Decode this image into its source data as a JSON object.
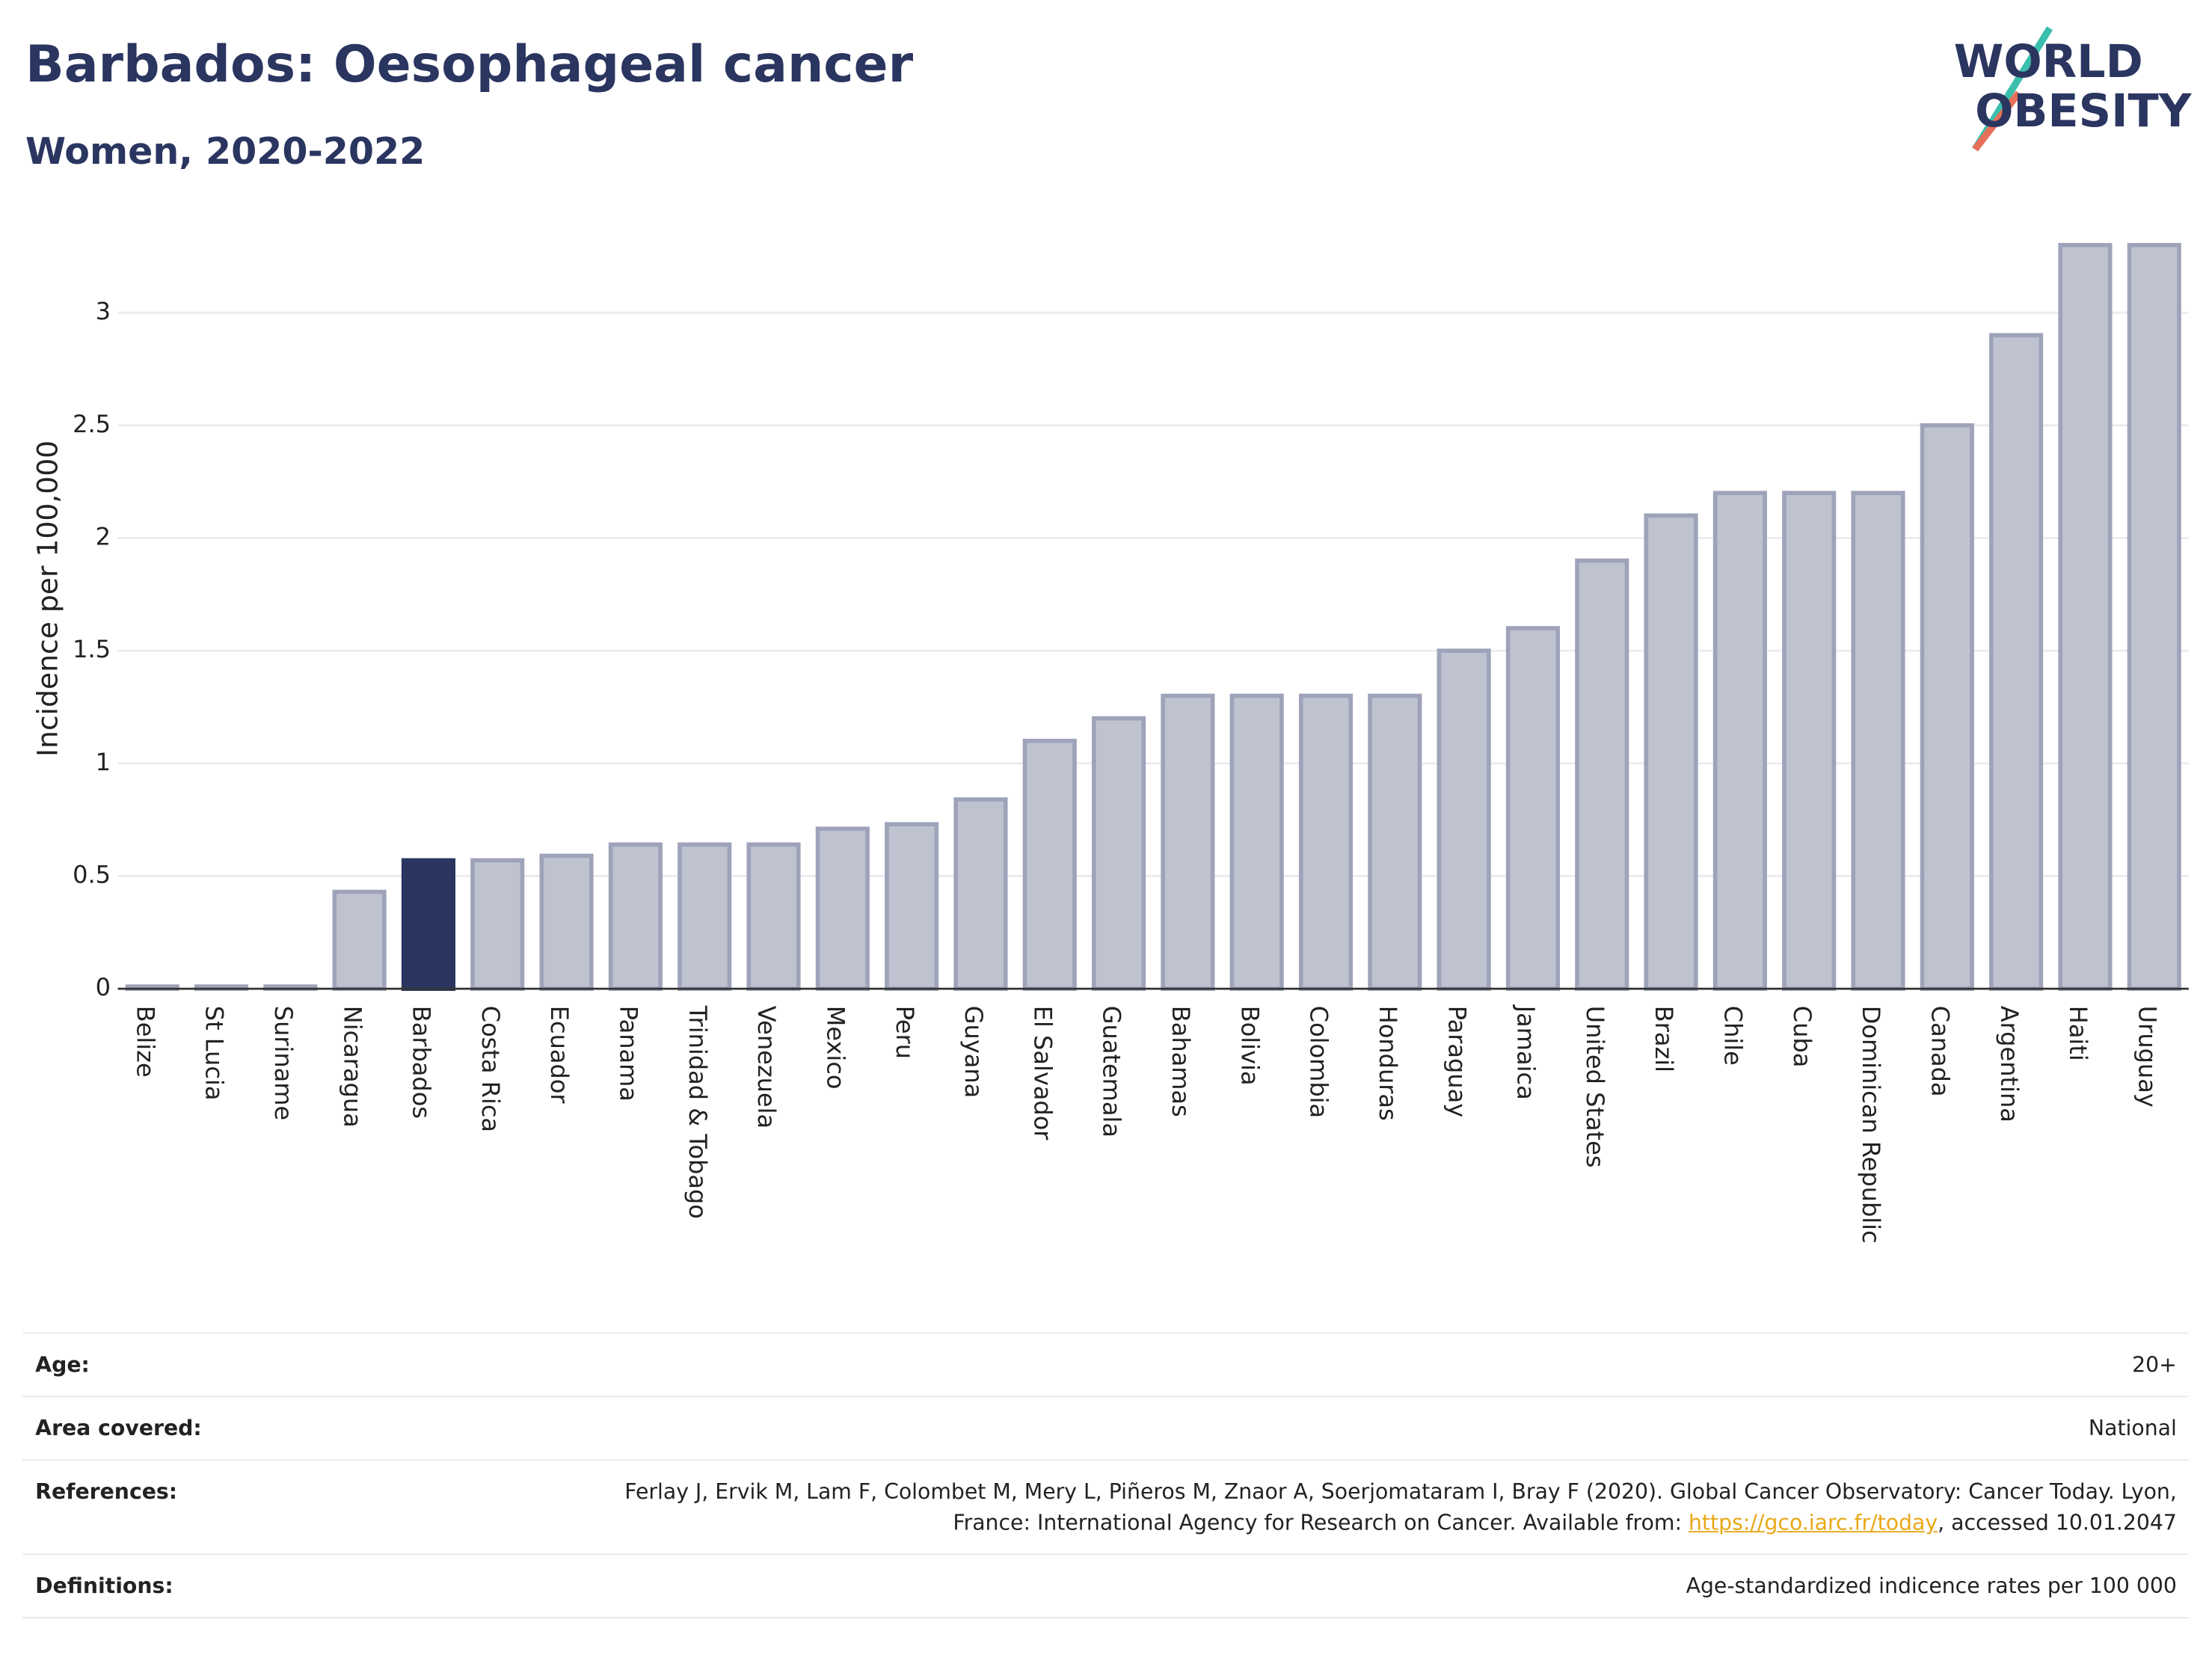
{
  "header": {
    "logo_line1": "WORLD",
    "logo_line2": "OBESITY"
  },
  "chart_data": {
    "type": "bar",
    "title": "Barbados: Oesophageal cancer",
    "subtitle": "Women, 2020-2022",
    "y_label": "Incidence per 100,000",
    "categories": [
      "Belize",
      "St Lucia",
      "Suriname",
      "Nicaragua",
      "Barbados",
      "Costa Rica",
      "Ecuador",
      "Panama",
      "Trinidad & Tobago",
      "Venezuela",
      "Mexico",
      "Peru",
      "Guyana",
      "El Salvador",
      "Guatemala",
      "Bahamas",
      "Bolivia",
      "Colombia",
      "Honduras",
      "Paraguay",
      "Jamaica",
      "United States",
      "Brazil",
      "Chile",
      "Cuba",
      "Dominican Republic",
      "Canada",
      "Argentina",
      "Haiti",
      "Uruguay"
    ],
    "values": [
      0.01,
      0.01,
      0.01,
      0.43,
      0.57,
      0.57,
      0.59,
      0.64,
      0.64,
      0.64,
      0.71,
      0.73,
      0.84,
      1.1,
      1.2,
      1.3,
      1.3,
      1.3,
      1.3,
      1.5,
      1.6,
      1.9,
      2.1,
      2.2,
      2.2,
      2.2,
      2.5,
      2.9,
      3.3,
      3.3
    ],
    "color": "#bfc3d0",
    "highlight_color": "#2a3560",
    "highlight_index": 4,
    "ylim": [
      0,
      3.45
    ],
    "yticks": [
      0,
      0.5,
      1,
      1.5,
      2,
      2.5,
      3
    ],
    "grid": true
  },
  "details": {
    "age": {
      "label": "Age:",
      "value": "20+"
    },
    "area": {
      "label": "Area covered:",
      "value": "National"
    },
    "references": {
      "label": "References:",
      "text_before": "Ferlay J, Ervik M, Lam F, Colombet M, Mery L, Piñeros M, Znaor A, Soerjomataram I, Bray F (2020). Global Cancer Observatory: Cancer Today. Lyon, France: International Agency for Research on Cancer. Available from: ",
      "link": "https://gco.iarc.fr/today",
      "text_after": ", accessed 10.01.2047"
    },
    "definitions": {
      "label": "Definitions:",
      "value": "Age-standardized indicence rates per 100 000"
    }
  }
}
